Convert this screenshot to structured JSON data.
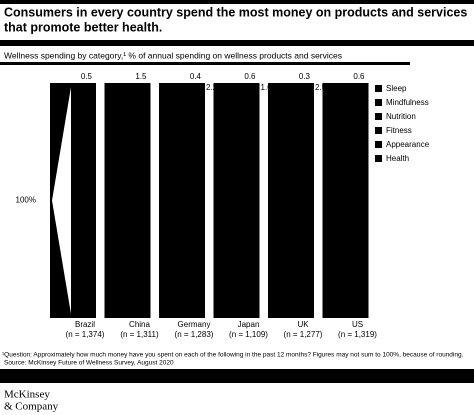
{
  "chart_data": {
    "type": "bar",
    "title_lines": [
      "Consumers in every country spend the most money on products and services",
      "that promote better health."
    ],
    "subtitle": "Wellness spending by category,¹ % of annual spending on wellness products and services",
    "categories": [
      "Brazil",
      "China",
      "Germany",
      "Japan",
      "UK",
      "US"
    ],
    "sample_sizes": [
      "(n = 1,374)",
      "(n = 1,311)",
      "(n = 1,283)",
      "(n = 1,109)",
      "(n = 1,277)",
      "(n = 1,319)"
    ],
    "full_bar": {
      "value": 100,
      "label": "100%"
    },
    "series": [
      {
        "name": "Sleep",
        "color": "#000000",
        "values": [
          0.5,
          1.5,
          0.4,
          0.6,
          0.3,
          0.6
        ]
      },
      {
        "name": "Mindfulness",
        "color": "#000000",
        "values": [
          null,
          null,
          2.2,
          1.6,
          2.5,
          null
        ]
      },
      {
        "name": "Nutrition",
        "color": "#000000",
        "values": [
          null,
          null,
          null,
          null,
          null,
          null
        ]
      },
      {
        "name": "Fitness",
        "color": "#000000",
        "values": [
          null,
          null,
          null,
          null,
          null,
          null
        ]
      },
      {
        "name": "Appearance",
        "color": "#000000",
        "values": [
          null,
          null,
          null,
          null,
          null,
          null
        ]
      },
      {
        "name": "Health",
        "color": "#000000",
        "values": [
          null,
          null,
          null,
          null,
          null,
          null
        ]
      }
    ],
    "footnote": "¹Question: Approximately how much money have you spent on each of the following in the past 12 months? Figures may not sum to 100%, because of rounding.",
    "source": "Source: McKinsey Future of Wellness Survey, August 2020",
    "brand_lines": [
      "McKinsey",
      "& Company"
    ]
  }
}
